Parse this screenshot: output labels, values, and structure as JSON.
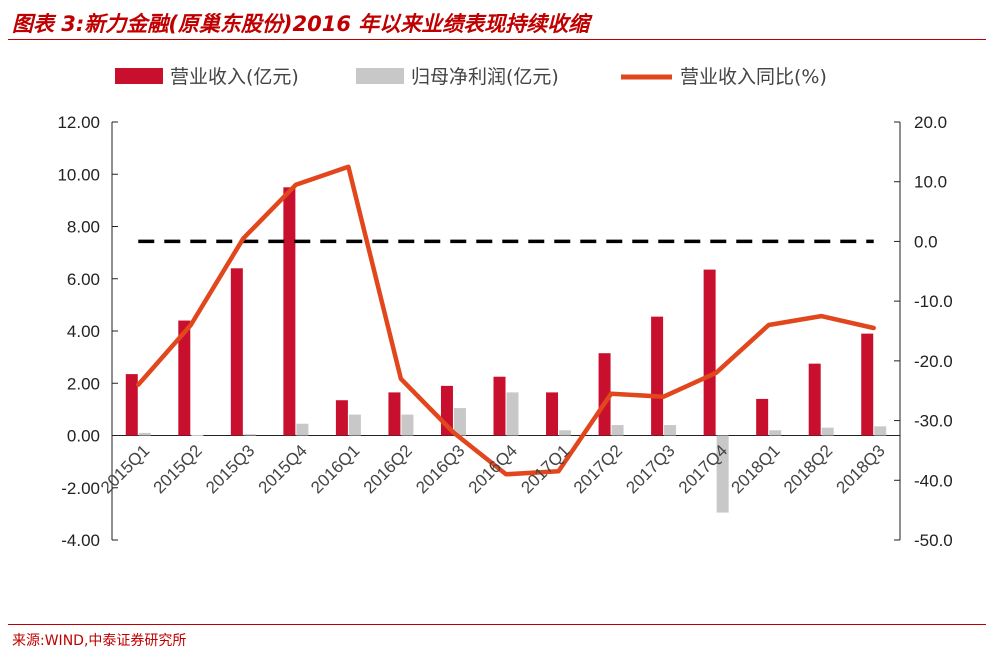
{
  "figure_title": "图表 3:新力金融(原巢东股份)2016 年以来业绩表现持续收缩",
  "source": "来源:WIND,中泰证券研究所",
  "colors": {
    "revenue": "#c8102e",
    "profit": "#c8c8c8",
    "yoy": "#e2461c",
    "zero": "#000000",
    "accent": "#c00000"
  },
  "chart_data": {
    "type": "bar",
    "categories": [
      "2015Q1",
      "2015Q2",
      "2015Q3",
      "2015Q4",
      "2016Q1",
      "2016Q2",
      "2016Q3",
      "2016Q4",
      "2017Q1",
      "2017Q2",
      "2017Q3",
      "2017Q4",
      "2018Q1",
      "2018Q2",
      "2018Q3"
    ],
    "series": [
      {
        "name": "营业收入(亿元)",
        "type": "bar",
        "axis": "left",
        "values": [
          2.35,
          4.4,
          6.4,
          9.5,
          1.35,
          1.65,
          1.9,
          2.25,
          1.65,
          3.15,
          4.55,
          6.35,
          1.4,
          2.75,
          3.9
        ]
      },
      {
        "name": "归母净利润(亿元)",
        "type": "bar",
        "axis": "left",
        "values": [
          0.1,
          0.02,
          0.05,
          0.45,
          0.8,
          0.8,
          1.05,
          1.65,
          0.2,
          0.4,
          0.4,
          -2.95,
          0.2,
          0.3,
          0.35
        ]
      },
      {
        "name": "营业收入同比(%)",
        "type": "line",
        "axis": "right",
        "values": [
          -24.0,
          -14.0,
          0.5,
          9.5,
          12.5,
          -23.0,
          -32.0,
          -39.0,
          -38.5,
          -25.5,
          -26.0,
          -22.0,
          -14.0,
          -12.5,
          -14.5
        ]
      }
    ],
    "reference_line": {
      "axis": "right",
      "value": 0.0,
      "style": "dashed"
    },
    "y_left": {
      "range": [
        -4,
        12
      ],
      "ticks": [
        "-4.00",
        "-2.00",
        "0.00",
        "2.00",
        "4.00",
        "6.00",
        "8.00",
        "10.00",
        "12.00"
      ]
    },
    "y_right": {
      "range": [
        -50,
        20
      ],
      "ticks": [
        "-50.0",
        "-40.0",
        "-30.0",
        "-20.0",
        "-10.0",
        "0.0",
        "10.0",
        "20.0"
      ]
    },
    "legend": {
      "position": "top"
    },
    "grid": false
  }
}
